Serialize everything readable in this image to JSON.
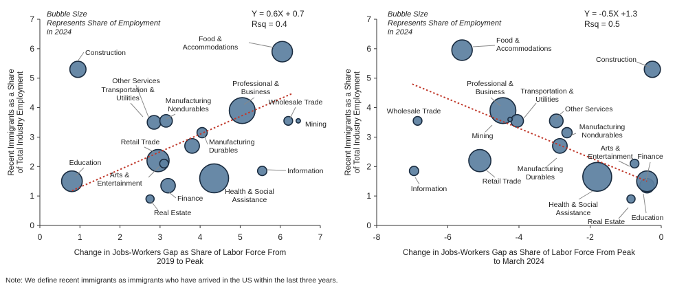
{
  "note": "Note: We define recent immigrants as immigrants who have arrived in the US within the last three years.",
  "colors": {
    "bubble_fill": "#5b7fa0",
    "bubble_stroke": "#1a2c40",
    "trendline": "#c0392b",
    "axis": "#333333",
    "leader": "#888888"
  },
  "chart_data": [
    {
      "type": "scatter",
      "subtype": "bubble",
      "size_note": "Bubble Size Represents Share of Employment in 2024",
      "equation": "Y = 0.6X + 0.7",
      "rsq": "Rsq = 0.4",
      "xlabel": "Change in Jobs-Workers Gap as Share of Labor Force From 2019 to Peak",
      "ylabel": "Recent Immigrants as a Share of Total Industry Employment",
      "xlim": [
        0,
        7
      ],
      "ylim": [
        0,
        7
      ],
      "xticks": [
        "0",
        "1",
        "2",
        "3",
        "4",
        "5",
        "6",
        "7"
      ],
      "yticks": [
        "0",
        "1",
        "2",
        "3",
        "4",
        "5",
        "6",
        "7"
      ],
      "grid": false,
      "trendline": {
        "slope": 0.6,
        "intercept": 0.7,
        "x_range": [
          0.8,
          6.3
        ]
      },
      "points": [
        {
          "label": "Construction",
          "x": 0.95,
          "y": 5.3,
          "size": 5.5
        },
        {
          "label": "Food & Accommodations",
          "x": 6.05,
          "y": 5.9,
          "size": 8.8
        },
        {
          "label": "Other Services",
          "x": 2.85,
          "y": 3.5,
          "size": 3.9
        },
        {
          "label": "Transportation & Utilities",
          "x": 3.15,
          "y": 3.55,
          "size": 3.3
        },
        {
          "label": "Manufacturing Nondurables",
          "x": 4.05,
          "y": 3.15,
          "size": 2.2
        },
        {
          "label": "Professional & Business",
          "x": 5.05,
          "y": 3.9,
          "size": 14.0
        },
        {
          "label": "Wholesale Trade",
          "x": 6.2,
          "y": 3.55,
          "size": 1.6
        },
        {
          "label": "Mining",
          "x": 6.45,
          "y": 3.55,
          "size": 0.4
        },
        {
          "label": "Manufacturing Durables",
          "x": 3.8,
          "y": 2.7,
          "size": 4.5
        },
        {
          "label": "Retail Trade",
          "x": 2.95,
          "y": 2.2,
          "size": 10.3
        },
        {
          "label": "Arts & Entertainment",
          "x": 3.1,
          "y": 2.1,
          "size": 1.6
        },
        {
          "label": "Education",
          "x": 0.8,
          "y": 1.5,
          "size": 9.0
        },
        {
          "label": "Finance",
          "x": 3.2,
          "y": 1.35,
          "size": 4.4
        },
        {
          "label": "Health & Social Assistance",
          "x": 4.35,
          "y": 1.6,
          "size": 17.5
        },
        {
          "label": "Information",
          "x": 5.55,
          "y": 1.85,
          "size": 1.8
        },
        {
          "label": "Real Estate",
          "x": 2.75,
          "y": 0.9,
          "size": 1.4
        }
      ]
    },
    {
      "type": "scatter",
      "subtype": "bubble",
      "size_note": "Bubble Size Represents Share of Employment in 2024",
      "equation": "Y = -0.5X +1.3",
      "rsq": "Rsq = 0.5",
      "xlabel": "Change in Jobs-Workers Gap as Share of Labor Force From Peak to March 2024",
      "ylabel": "Recent Immigrants as a Share of Total Industry Employment",
      "xlim": [
        -8,
        0
      ],
      "ylim": [
        0,
        7
      ],
      "xticks": [
        "-8",
        "-6",
        "-4",
        "-2",
        "0"
      ],
      "yticks": [
        "0",
        "1",
        "2",
        "3",
        "4",
        "5",
        "6",
        "7"
      ],
      "grid": false,
      "trendline": {
        "slope": -0.5,
        "intercept": 1.3,
        "x_range": [
          -7.0,
          -0.4
        ]
      },
      "points": [
        {
          "label": "Food & Accommodations",
          "x": -5.6,
          "y": 5.95,
          "size": 8.8
        },
        {
          "label": "Construction",
          "x": -0.25,
          "y": 5.3,
          "size": 5.5
        },
        {
          "label": "Wholesale Trade",
          "x": -6.85,
          "y": 3.55,
          "size": 1.6
        },
        {
          "label": "Professional & Business",
          "x": -4.45,
          "y": 3.9,
          "size": 14.0
        },
        {
          "label": "Transportation & Utilities",
          "x": -4.05,
          "y": 3.55,
          "size": 3.3
        },
        {
          "label": "Mining",
          "x": -4.25,
          "y": 3.6,
          "size": 0.4
        },
        {
          "label": "Other Services",
          "x": -2.95,
          "y": 3.55,
          "size": 3.9
        },
        {
          "label": "Manufacturing Nondurables",
          "x": -2.65,
          "y": 3.15,
          "size": 2.2
        },
        {
          "label": "Manufacturing Durables",
          "x": -2.85,
          "y": 2.7,
          "size": 4.5
        },
        {
          "label": "Retail Trade",
          "x": -5.1,
          "y": 2.2,
          "size": 10.3
        },
        {
          "label": "Arts & Entertainment",
          "x": -0.75,
          "y": 2.1,
          "size": 1.6
        },
        {
          "label": "Information",
          "x": -6.95,
          "y": 1.85,
          "size": 1.8
        },
        {
          "label": "Health & Social Assistance",
          "x": -1.8,
          "y": 1.65,
          "size": 17.5
        },
        {
          "label": "Finance",
          "x": -0.4,
          "y": 1.35,
          "size": 4.4
        },
        {
          "label": "Education",
          "x": -0.4,
          "y": 1.5,
          "size": 9.0
        },
        {
          "label": "Real Estate",
          "x": -0.85,
          "y": 0.9,
          "size": 1.4
        }
      ]
    }
  ]
}
